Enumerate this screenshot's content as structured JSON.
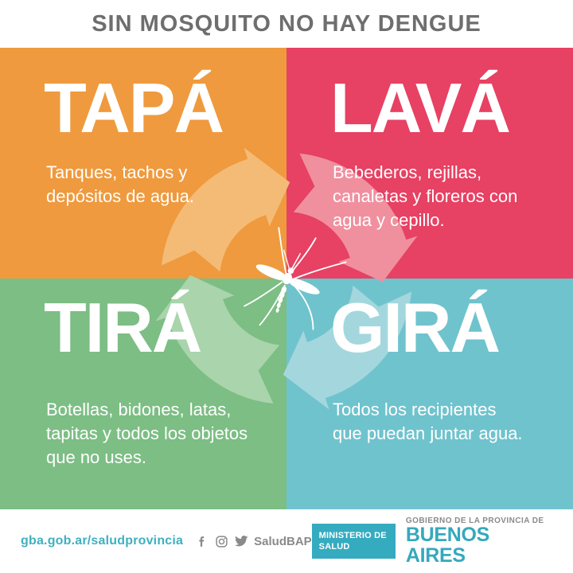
{
  "title": "SIN MOSQUITO NO HAY DENGUE",
  "quadrants": [
    {
      "id": "tapa",
      "action": "TAPÁ",
      "description": "Tanques, tachos y\ndepósitos de agua.",
      "color": "#EF9A3E",
      "light_color": "#F4BB77"
    },
    {
      "id": "lava",
      "action": "LAVÁ",
      "description": "Bebederos, rejillas,\ncanaletas y floreros con\nagua y cepillo.",
      "color": "#E74163",
      "light_color": "#F0909F"
    },
    {
      "id": "tira",
      "action": "TIRÁ",
      "description": "Botellas, bidones, latas,\ntapitas y todos los objetos\nque no uses.",
      "color": "#7CBE84",
      "light_color": "#A9D4AC"
    },
    {
      "id": "gira",
      "action": "GIRÁ",
      "description": "Todos los recipientes\nque puedan juntar agua.",
      "color": "#6FC3CD",
      "light_color": "#A3D7DD"
    }
  ],
  "center": {
    "icon": "mosquito-icon"
  },
  "footer": {
    "website": "gba.gob.ar/saludprovincia",
    "social_icons": [
      "facebook-icon",
      "instagram-icon",
      "twitter-icon"
    ],
    "social_handle": "SaludBAP",
    "ministry_badge": "MINISTERIO DE\nSALUD",
    "government_line1": "GOBIERNO DE LA PROVINCIA DE",
    "government_line2": "BUENOS AIRES"
  },
  "colors": {
    "title_text": "#6E6E6E",
    "action_text": "#FFFFFF",
    "footer_link": "#3FB0C0",
    "footer_text": "#8A8A8A",
    "ministry_badge_bg": "#35ABC0",
    "government_name": "#35A9BC"
  }
}
